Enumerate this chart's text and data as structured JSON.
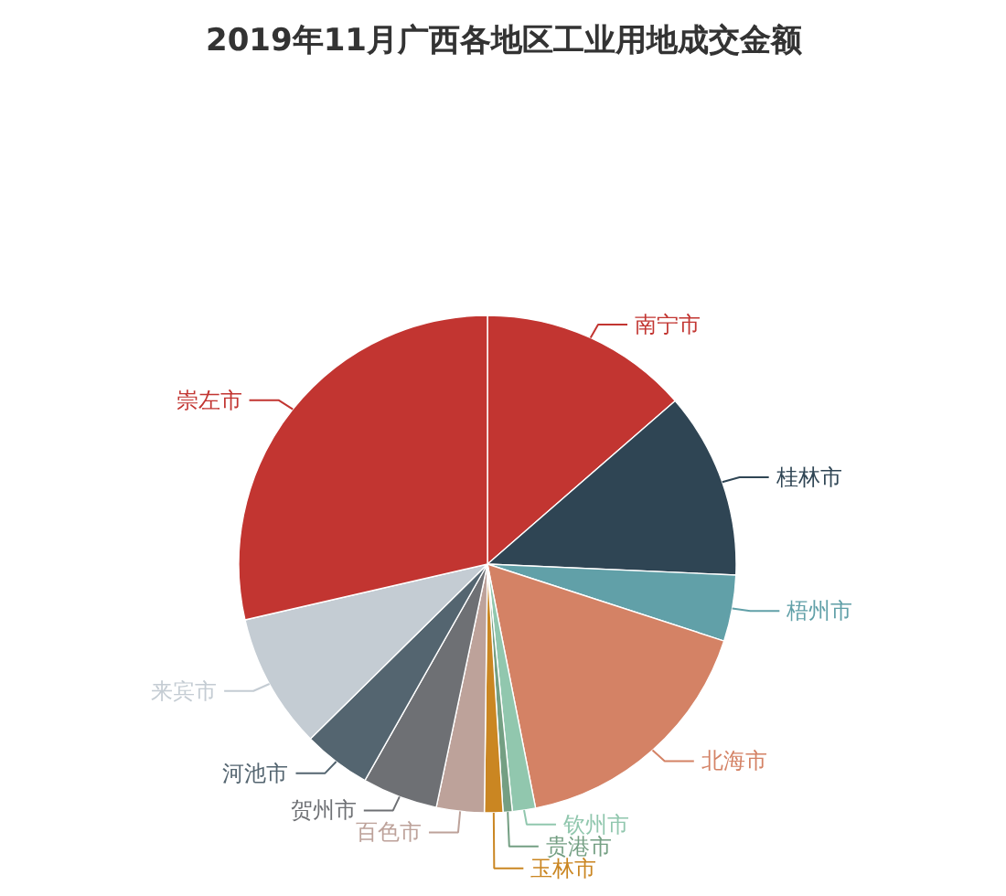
{
  "chart_data": {
    "type": "pie",
    "title": "2019年11月广西各地区工业用地成交金额",
    "categories": [
      "南宁市",
      "桂林市",
      "梧州市",
      "北海市",
      "钦州市",
      "贵港市",
      "玉林市",
      "百色市",
      "贺州市",
      "河池市",
      "来宾市",
      "崇左市"
    ],
    "values": [
      13.6,
      12.1,
      4.3,
      16.9,
      1.5,
      0.6,
      1.2,
      3.1,
      4.9,
      4.4,
      8.8,
      28.6
    ],
    "colors": [
      "#c23531",
      "#2f4554",
      "#61a0a8",
      "#d48265",
      "#91c7ae",
      "#749f83",
      "#ca8622",
      "#bda29a",
      "#6e7074",
      "#546570",
      "#c4ccd3",
      "#c23531"
    ]
  }
}
